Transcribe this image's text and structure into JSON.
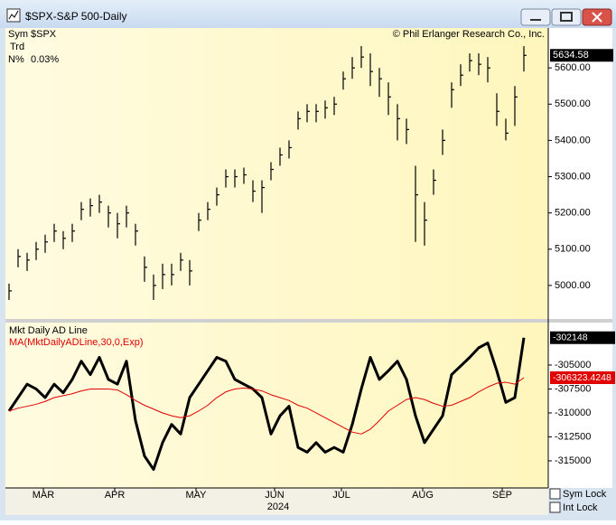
{
  "window": {
    "title": "$SPX-S&P 500-Daily"
  },
  "controls": {
    "sym_lock": "Sym Lock",
    "int_lock": "Int Lock"
  },
  "x_axis": {
    "year": "2024",
    "xticks": [
      {
        "value": 3.8,
        "label": "MAR"
      },
      {
        "value": 11.7,
        "label": "APR"
      },
      {
        "value": 20.7,
        "label": "MAY"
      },
      {
        "value": 29.4,
        "label": "JUN"
      },
      {
        "value": 36.8,
        "label": "JUL"
      },
      {
        "value": 45.8,
        "label": "AUG"
      },
      {
        "value": 54.6,
        "label": "SEP"
      }
    ]
  },
  "chart_data": [
    {
      "type": "ohlc",
      "symbol_label": "Sym",
      "symbol": "$SPX",
      "trend_label": "Trd",
      "change_label": "N%",
      "change": "0.03%",
      "copyright": "© Phil Erlanger Research Co., Inc.",
      "color": "#000000",
      "last_price": 5634.58,
      "close": [
        4985,
        5080,
        5070,
        5100,
        5120,
        5150,
        5130,
        5150,
        5210,
        5220,
        5230,
        5200,
        5170,
        5200,
        5150,
        5050,
        5000,
        5030,
        5030,
        5070,
        5040,
        5180,
        5210,
        5250,
        5300,
        5300,
        5305,
        5260,
        5270,
        5320,
        5360,
        5380,
        5460,
        5480,
        5480,
        5490,
        5500,
        5570,
        5600,
        5630,
        5590,
        5570,
        5520,
        5460,
        5430,
        5250,
        5180,
        5290,
        5400,
        5540,
        5580,
        5620,
        5610,
        5600,
        5480,
        5420,
        5520,
        5634.58
      ],
      "high": [
        5005,
        5100,
        5090,
        5120,
        5140,
        5170,
        5150,
        5170,
        5230,
        5240,
        5250,
        5220,
        5200,
        5220,
        5170,
        5080,
        5030,
        5060,
        5060,
        5090,
        5070,
        5200,
        5230,
        5270,
        5320,
        5320,
        5325,
        5290,
        5290,
        5340,
        5380,
        5400,
        5480,
        5500,
        5500,
        5510,
        5520,
        5590,
        5630,
        5660,
        5640,
        5600,
        5560,
        5500,
        5460,
        5330,
        5230,
        5320,
        5430,
        5560,
        5610,
        5640,
        5640,
        5630,
        5530,
        5460,
        5550,
        5660
      ],
      "low": [
        4960,
        5050,
        5040,
        5070,
        5090,
        5120,
        5100,
        5120,
        5180,
        5190,
        5200,
        5160,
        5130,
        5160,
        5110,
        5010,
        4960,
        4990,
        5000,
        5040,
        5000,
        5150,
        5180,
        5220,
        5270,
        5270,
        5280,
        5230,
        5200,
        5290,
        5330,
        5350,
        5430,
        5450,
        5450,
        5460,
        5470,
        5540,
        5570,
        5600,
        5550,
        5520,
        5470,
        5400,
        5390,
        5120,
        5110,
        5250,
        5360,
        5490,
        5550,
        5590,
        5580,
        5560,
        5440,
        5400,
        5440,
        5590
      ],
      "ylim": [
        4907.5,
        5710
      ],
      "yticks": [
        {
          "value": 5000,
          "label": "5000.00"
        },
        {
          "value": 5100,
          "label": "5100.00"
        },
        {
          "value": 5200,
          "label": "5200.00"
        },
        {
          "value": 5300,
          "label": "5300.00"
        },
        {
          "value": 5400,
          "label": "5400.00"
        },
        {
          "value": 5500,
          "label": "5500.00"
        },
        {
          "value": 5600,
          "label": "5600.00"
        }
      ]
    },
    {
      "type": "line",
      "ylim": [
        -317830,
        -300570
      ],
      "yticks": [
        -305000,
        -307500,
        -310000,
        -312500,
        -315000
      ],
      "series": [
        {
          "name": "Mkt Daily AD Line",
          "color": "#000000",
          "width": 3,
          "values": [
            -309800,
            -308400,
            -307000,
            -307500,
            -308400,
            -307000,
            -307900,
            -306500,
            -304600,
            -306000,
            -304200,
            -306500,
            -307000,
            -304600,
            -310800,
            -314500,
            -315900,
            -313100,
            -311200,
            -312200,
            -308400,
            -307000,
            -305600,
            -304200,
            -304600,
            -306500,
            -307000,
            -307500,
            -308400,
            -312200,
            -310300,
            -309300,
            -313600,
            -314100,
            -313100,
            -314100,
            -313600,
            -314100,
            -311200,
            -307500,
            -304200,
            -306500,
            -305600,
            -304600,
            -306500,
            -310300,
            -313100,
            -311700,
            -310300,
            -306000,
            -305100,
            -304200,
            -303200,
            -302700,
            -305600,
            -308900,
            -308400,
            -302148
          ]
        },
        {
          "name": "MA(MktDailyADLine,30,0,Exp)",
          "color": "#e00000",
          "width": 1,
          "values": [
            -309800,
            -309500,
            -309300,
            -309100,
            -308800,
            -308400,
            -308200,
            -308000,
            -307700,
            -307500,
            -307500,
            -307500,
            -307600,
            -308100,
            -308700,
            -309200,
            -309600,
            -310000,
            -310300,
            -310500,
            -310300,
            -309800,
            -309200,
            -308400,
            -307800,
            -307500,
            -307400,
            -307500,
            -307700,
            -308100,
            -308400,
            -308700,
            -309200,
            -309500,
            -310000,
            -310500,
            -311000,
            -311500,
            -312000,
            -312200,
            -311700,
            -310800,
            -309800,
            -309200,
            -308600,
            -308400,
            -308600,
            -309000,
            -309300,
            -309200,
            -308800,
            -308400,
            -307800,
            -307300,
            -306900,
            -306800,
            -307000,
            -306323.4248
          ]
        }
      ]
    }
  ]
}
